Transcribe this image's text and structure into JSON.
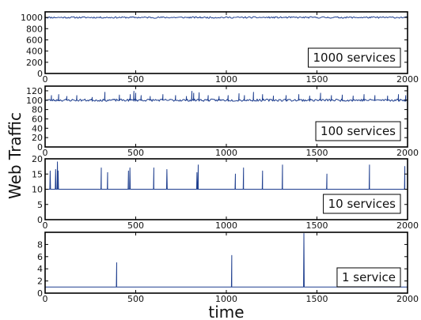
{
  "ylabel": "Web Traffic",
  "xlabel": "time",
  "colors": {
    "series": "#1f3f8f",
    "frame": "#000000"
  },
  "chart_data": [
    {
      "type": "line",
      "series": [
        {
          "name": "1000 services"
        }
      ],
      "legend": "1000 services",
      "legend_position": "bottom-right",
      "xlim": [
        0,
        2000
      ],
      "ylim": [
        0,
        1100
      ],
      "xticks": [
        0,
        500,
        1000,
        1500,
        2000
      ],
      "yticks": [
        0,
        200,
        400,
        600,
        800,
        1000
      ],
      "baseline": 1000,
      "noise": 28,
      "seed": 11,
      "spikes": []
    },
    {
      "type": "line",
      "series": [
        {
          "name": "100 services"
        }
      ],
      "legend": "100 services",
      "legend_position": "bottom-right",
      "xlim": [
        0,
        2000
      ],
      "ylim": [
        0,
        130
      ],
      "xticks": [
        0,
        500,
        1000,
        1500,
        2000
      ],
      "yticks": [
        0,
        20,
        40,
        60,
        80,
        100,
        120
      ],
      "baseline": 100,
      "noise": 5,
      "seed": 23,
      "spikes": [
        [
          35,
          110
        ],
        [
          75,
          112
        ],
        [
          120,
          108
        ],
        [
          175,
          110
        ],
        [
          260,
          106
        ],
        [
          330,
          117
        ],
        [
          410,
          111
        ],
        [
          470,
          112
        ],
        [
          490,
          119
        ],
        [
          500,
          115
        ],
        [
          530,
          110
        ],
        [
          580,
          108
        ],
        [
          650,
          112
        ],
        [
          720,
          110
        ],
        [
          780,
          108
        ],
        [
          810,
          119
        ],
        [
          820,
          115
        ],
        [
          850,
          116
        ],
        [
          900,
          110
        ],
        [
          960,
          108
        ],
        [
          1010,
          110
        ],
        [
          1070,
          114
        ],
        [
          1100,
          110
        ],
        [
          1150,
          117
        ],
        [
          1200,
          112
        ],
        [
          1260,
          109
        ],
        [
          1330,
          110
        ],
        [
          1400,
          112
        ],
        [
          1460,
          109
        ],
        [
          1520,
          115
        ],
        [
          1580,
          110
        ],
        [
          1640,
          111
        ],
        [
          1700,
          109
        ],
        [
          1760,
          112
        ],
        [
          1820,
          110
        ],
        [
          1890,
          109
        ],
        [
          1950,
          112
        ],
        [
          1990,
          110
        ]
      ]
    },
    {
      "type": "line",
      "series": [
        {
          "name": "10 services"
        }
      ],
      "legend": "10 services",
      "legend_position": "bottom-right",
      "xlim": [
        0,
        2000
      ],
      "ylim": [
        0,
        20
      ],
      "xticks": [
        0,
        500,
        1000,
        1500,
        2000
      ],
      "yticks": [
        0,
        5,
        10,
        15,
        20
      ],
      "baseline": 10,
      "noise": 0,
      "seed": 5,
      "spikes": [
        [
          28,
          16
        ],
        [
          58,
          16.5
        ],
        [
          68,
          19
        ],
        [
          72,
          16
        ],
        [
          310,
          17
        ],
        [
          345,
          15.5
        ],
        [
          460,
          16
        ],
        [
          468,
          17
        ],
        [
          600,
          17
        ],
        [
          672,
          16.5
        ],
        [
          838,
          15.5
        ],
        [
          845,
          18
        ],
        [
          1050,
          15
        ],
        [
          1095,
          17
        ],
        [
          1200,
          16
        ],
        [
          1310,
          18
        ],
        [
          1555,
          15
        ],
        [
          1790,
          18
        ],
        [
          1985,
          17.5
        ]
      ]
    },
    {
      "type": "line",
      "series": [
        {
          "name": "1 service"
        }
      ],
      "legend": "1 service",
      "legend_position": "bottom-right",
      "xlim": [
        0,
        2000
      ],
      "ylim": [
        0,
        10
      ],
      "xticks": [
        0,
        500,
        1000,
        1500,
        2000
      ],
      "yticks": [
        0,
        2,
        4,
        6,
        8
      ],
      "baseline": 1,
      "noise": 0,
      "seed": 3,
      "spikes": [
        [
          395,
          5
        ],
        [
          1030,
          6.2
        ],
        [
          1428,
          9.8
        ]
      ]
    }
  ]
}
